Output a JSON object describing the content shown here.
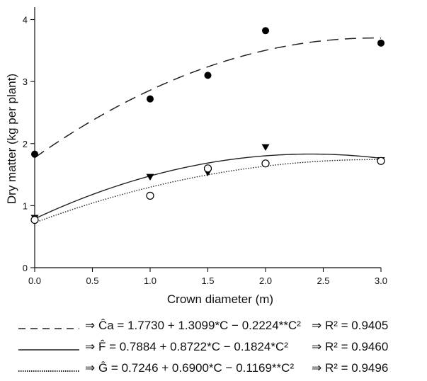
{
  "chart_data": {
    "type": "scatter",
    "xlabel": "Crown diameter (m)",
    "ylabel": "Dry matter (kg per plant)",
    "xlim": [
      0,
      3.0
    ],
    "ylim": [
      0,
      4.2
    ],
    "x_ticks": [
      "0.0",
      "0.5",
      "1.0",
      "1.5",
      "2.0",
      "2.5",
      "3.0"
    ],
    "y_ticks": [
      "0",
      "1",
      "2",
      "3",
      "4"
    ],
    "x_tick_values": [
      0,
      0.5,
      1.0,
      1.5,
      2.0,
      2.5,
      3.0
    ],
    "y_tick_values": [
      0,
      1,
      2,
      3,
      4
    ],
    "grid": false,
    "series": [
      {
        "key": "Ca",
        "marker": "filled-circle",
        "line_style": "dashed",
        "x": [
          0,
          1,
          1.5,
          2,
          3
        ],
        "y": [
          1.83,
          2.72,
          3.1,
          3.82,
          3.62
        ],
        "fit": [
          1.773,
          1.3099,
          -0.2224
        ]
      },
      {
        "key": "F",
        "marker": "filled-triangle-down",
        "line_style": "solid",
        "x": [
          0,
          1,
          1.5,
          2,
          3
        ],
        "y": [
          0.8,
          1.46,
          1.53,
          1.94,
          1.73
        ],
        "fit": [
          0.7884,
          0.8722,
          -0.1824
        ]
      },
      {
        "key": "G",
        "marker": "open-circle",
        "line_style": "dotted",
        "x": [
          0,
          1,
          1.5,
          2,
          3
        ],
        "y": [
          0.77,
          1.16,
          1.6,
          1.68,
          1.72
        ],
        "fit": [
          0.7246,
          0.69,
          -0.1169
        ]
      }
    ]
  },
  "legend": [
    {
      "line_style": "dashed",
      "equation": "⇒ Ĉa = 1.7730 + 1.3099*C − 0.2224**C²",
      "r2": "⇒  R² = 0.9405"
    },
    {
      "line_style": "solid",
      "equation": "⇒ F̂ = 0.7884 + 0.8722*C − 0.1824*C²",
      "r2": "⇒  R² = 0.9460"
    },
    {
      "line_style": "dotted",
      "equation": "⇒ Ĝ = 0.7246 + 0.6900*C − 0.1169**C²",
      "r2": "⇒  R² = 0.9496"
    }
  ]
}
